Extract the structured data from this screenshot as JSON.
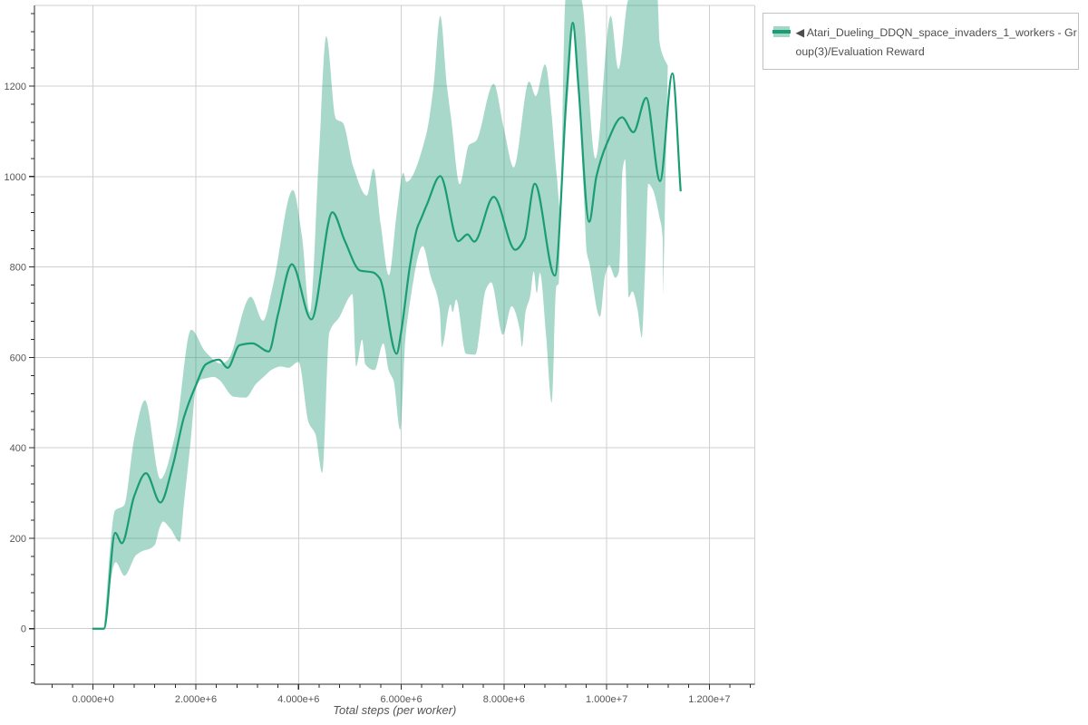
{
  "chart_data": {
    "type": "line",
    "title": "",
    "xlabel": "Total steps (per worker)",
    "ylabel": "",
    "x_range": [
      -1142000,
      12888000
    ],
    "y_range": [
      -122.8,
      1378.4
    ],
    "grid": true,
    "legend_position": "top-right",
    "x_ticks": [
      {
        "value": 0,
        "label": "0.000e+0"
      },
      {
        "value": 2000000,
        "label": "2.000e+6"
      },
      {
        "value": 4000000,
        "label": "4.000e+6"
      },
      {
        "value": 6000000,
        "label": "6.000e+6"
      },
      {
        "value": 8000000,
        "label": "8.000e+6"
      },
      {
        "value": 10000000,
        "label": "1.000e+7"
      },
      {
        "value": 12000000,
        "label": "1.200e+7"
      }
    ],
    "y_ticks": [
      {
        "value": 0,
        "label": "0"
      },
      {
        "value": 200,
        "label": "200"
      },
      {
        "value": 400,
        "label": "400"
      },
      {
        "value": 600,
        "label": "600"
      },
      {
        "value": 800,
        "label": "800"
      },
      {
        "value": 1000,
        "label": "1000"
      },
      {
        "value": 1200,
        "label": "1200"
      }
    ],
    "x_minor_step": 400000,
    "y_minor_step": 40,
    "series": [
      {
        "name": "Atari_Dueling_DDQN_space_invaders_1_workers - Group(3)/Evaluation Reward (mean)",
        "kind": "line",
        "x": [
          0,
          210000,
          430000,
          560000,
          800000,
          1030000,
          1310000,
          1550000,
          1770000,
          2000000,
          2200000,
          2450000,
          2620000,
          2850000,
          3100000,
          3420000,
          3600000,
          3870000,
          4250000,
          4660000,
          4900000,
          5200000,
          5450000,
          5580000,
          5910000,
          6000000,
          6170000,
          6310000,
          6380000,
          6500000,
          6760000,
          7110000,
          7290000,
          7420000,
          7800000,
          8220000,
          8400000,
          8600000,
          8990000,
          9230000,
          9340000,
          9450000,
          9660000,
          9800000,
          10000000,
          10300000,
          10520000,
          10770000,
          11040000,
          11280000,
          11440000
        ],
        "y": [
          0,
          0,
          212,
          189,
          293,
          344,
          279,
          360,
          468,
          538,
          585,
          595,
          577,
          627,
          631,
          613,
          695,
          806,
          684,
          921,
          858,
          792,
          788,
          775,
          608,
          658,
          803,
          886,
          905,
          938,
          1001,
          857,
          872,
          856,
          955,
          838,
          862,
          984,
          781,
          1200,
          1340,
          1200,
          900,
          1000,
          1072,
          1131,
          1098,
          1174,
          990,
          1228,
          969
        ]
      },
      {
        "name": "confidence band upper",
        "kind": "band-upper",
        "x": [
          210000,
          430000,
          600000,
          800000,
          1010000,
          1310000,
          1600000,
          1910000,
          2190000,
          2500000,
          2620000,
          3070000,
          3310000,
          3500000,
          3890000,
          4070000,
          4220000,
          4400000,
          4540000,
          4730000,
          4860000,
          5070000,
          5330000,
          5460000,
          5600000,
          5760000,
          5910000,
          6040000,
          6100000,
          6480000,
          6630000,
          6760000,
          6890000,
          6970000,
          7140000,
          7320000,
          7450000,
          7800000,
          8000000,
          8190000,
          8490000,
          8620000,
          8800000,
          9030000,
          9090000,
          9200000,
          9500000,
          9780000,
          10080000,
          10230000,
          10430000,
          10990000,
          11030000,
          11080000,
          11190000
        ],
        "y": [
          3,
          262,
          272,
          420,
          505,
          331,
          430,
          661,
          612,
          586,
          594,
          734,
          681,
          758,
          970,
          865,
          700,
          1052,
          1310,
          1127,
          1119,
          1020,
          958,
          1018,
          895,
          782,
          917,
          1008,
          988,
          1090,
          1200,
          1355,
          1200,
          1130,
          983,
          1070,
          1078,
          1205,
          1105,
          1020,
          1210,
          1178,
          1248,
          1000,
          930,
          1392,
          1392,
          1040,
          1355,
          1238,
          1392,
          1392,
          1298,
          1272,
          1245
        ]
      },
      {
        "name": "confidence band lower",
        "kind": "band-lower",
        "x": [
          210000,
          440000,
          610000,
          840000,
          990000,
          1090000,
          1200000,
          1300000,
          1360000,
          1500000,
          1690000,
          1770000,
          1900000,
          2000000,
          2100000,
          2200000,
          2350000,
          2450000,
          2740000,
          2970000,
          3170000,
          3340000,
          3480000,
          3660000,
          3800000,
          4000000,
          4200000,
          4330000,
          4460000,
          4600000,
          4800000,
          5000000,
          5050000,
          5120000,
          5240000,
          5300000,
          5480000,
          5650000,
          5760000,
          5850000,
          5980000,
          6080000,
          6140000,
          6420000,
          6570000,
          6750000,
          6790000,
          6960000,
          7000000,
          7070000,
          7260000,
          7440000,
          7650000,
          7750000,
          7980000,
          8150000,
          8310000,
          8350000,
          8420000,
          8510000,
          8580000,
          8640000,
          8700000,
          8820000,
          8930000,
          9020000,
          9070000,
          9100000,
          9250000,
          9350000,
          9450000,
          9560000,
          9610000,
          9660000,
          9870000,
          9970000,
          10050000,
          10170000,
          10240000,
          10310000,
          10360000,
          10430000,
          10500000,
          10600000,
          10660000,
          10680000,
          10750000,
          10810000,
          10890000,
          11030000,
          11090000,
          11100000
        ],
        "y": [
          -2,
          147,
          117,
          163,
          173,
          176,
          185,
          225,
          237,
          222,
          192,
          278,
          415,
          530,
          551,
          554,
          557,
          551,
          513,
          511,
          541,
          559,
          573,
          580,
          577,
          590,
          455,
          430,
          345,
          655,
          690,
          735,
          740,
          580,
          639,
          585,
          572,
          631,
          570,
          549,
          440,
          640,
          698,
          846,
          781,
          706,
          623,
          717,
          700,
          728,
          608,
          606,
          751,
          766,
          650,
          713,
          661,
          623,
          700,
          735,
          790,
          742,
          787,
          649,
          500,
          757,
          764,
          920,
          1185,
          1325,
          1185,
          950,
          834,
          810,
          690,
          782,
          804,
          776,
          790,
          1015,
          1038,
          733,
          746,
          707,
          655,
          643,
          800,
          984,
          973,
          909,
          863,
          737
        ]
      }
    ]
  },
  "legend": {
    "label": "◀ Atari_Dueling_DDQN_space_invaders_1_workers - Group(3)/Evaluation Reward",
    "lines": [
      "◀ Atari_Dueling_DDQN_space_invaders_1_workers - Gr",
      "oup(3)/Evaluation Reward"
    ]
  },
  "colors": {
    "line": "#1a9c74",
    "band_fill": "rgba(26,153,112,0.38)",
    "band_solid": "#a3d6c5",
    "grid": "#cfcfcf",
    "axis": "#2b2b2b",
    "tick_label": "#555555",
    "axis_label": "#555555",
    "legend_text": "#4d4d4d",
    "legend_border": "#c9c9c9"
  }
}
